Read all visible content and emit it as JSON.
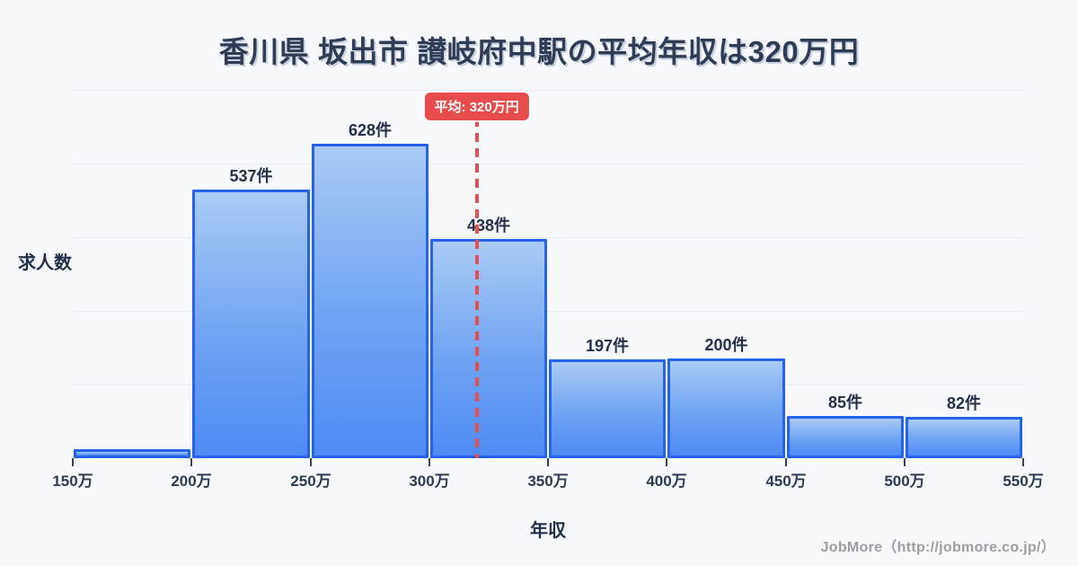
{
  "title": "香川県 坂出市 讃岐府中駅の平均年収は320万円",
  "chart_data": {
    "type": "bar",
    "subtype": "histogram",
    "title": "香川県 坂出市 讃岐府中駅の平均年収は320万円",
    "xlabel": "年収",
    "ylabel": "求人数",
    "bin_edges": [
      "150万",
      "200万",
      "250万",
      "300万",
      "350万",
      "400万",
      "450万",
      "500万",
      "550万"
    ],
    "bin_edges_man": [
      150,
      200,
      250,
      300,
      350,
      400,
      450,
      500,
      550
    ],
    "values": [
      18,
      537,
      628,
      438,
      197,
      200,
      85,
      82
    ],
    "bar_labels": [
      "",
      "537件",
      "628件",
      "438件",
      "197件",
      "200件",
      "85件",
      "82件"
    ],
    "mean": {
      "value_man": 320,
      "label": "平均: 320万円"
    },
    "xlim_man": [
      150,
      550
    ],
    "ylim": [
      0,
      736
    ],
    "grid": true,
    "legend": false,
    "colors": {
      "background": "#f7f8fc",
      "bar_fill_top": "#a9cbf5",
      "bar_fill_bottom": "#4e8bf4",
      "bar_border": "#2563eb",
      "mean_red": "#e64c4c",
      "text_dark": "#2e3c55",
      "grid_line": "#e9ecf2",
      "footer_gray": "#9c9ca1"
    }
  },
  "footer": {
    "credit": "JobMore（http://jobmore.co.jp/）"
  }
}
